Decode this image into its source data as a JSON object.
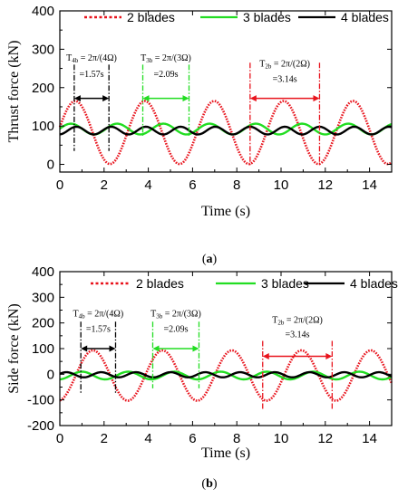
{
  "chart_data": [
    {
      "type": "line",
      "panel_label": "(a)",
      "xlabel": "Time (s)",
      "ylabel": "Thrust force (kN)",
      "xlim": [
        0,
        15
      ],
      "ylim": [
        -20,
        400
      ],
      "xticks": [
        0,
        2,
        4,
        6,
        8,
        10,
        12,
        14
      ],
      "yticks": [
        0,
        100,
        200,
        300,
        400
      ],
      "grid": false,
      "legend_position": "top",
      "series": [
        {
          "name": "2 blades",
          "color": "#e8141d",
          "style": "dotted",
          "mean": 83,
          "amplitude": 82,
          "period": 3.14,
          "phase_peak_time": 0.7
        },
        {
          "name": "3 blades",
          "color": "#22dd22",
          "style": "solid",
          "mean": 92,
          "amplitude": 14,
          "period": 2.09,
          "phase_peak_time": 0.5
        },
        {
          "name": "4 blades",
          "color": "#000000",
          "style": "solid",
          "mean": 88,
          "amplitude": 10,
          "period": 1.57,
          "phase_peak_time": 0.75
        }
      ],
      "annotations": [
        {
          "text_main": "T",
          "text_sub": "4b",
          "text_rest": " = 2π/(4Ω)",
          "value": "=1.57s",
          "color": "#000000",
          "x_start": 0.65,
          "x_end": 2.22,
          "y_arrow": 172,
          "y_label": 270,
          "y_value": 228,
          "line_top": 260,
          "line_bottom": 35
        },
        {
          "text_main": "T",
          "text_sub": "3b",
          "text_rest": " = 2π/(3Ω)",
          "value": "=2.09s",
          "color": "#22dd22",
          "x_start": 3.75,
          "x_end": 5.84,
          "y_arrow": 172,
          "y_label": 270,
          "y_value": 228,
          "line_top": 260,
          "line_bottom": 70
        },
        {
          "text_main": "T",
          "text_sub": "2b",
          "text_rest": " = 2π/(2Ω)",
          "value": "=3.14s",
          "color": "#e8141d",
          "x_start": 8.6,
          "x_end": 11.74,
          "y_arrow": 172,
          "y_label": 255,
          "y_value": 215,
          "line_top": 265,
          "line_bottom": -5
        }
      ]
    },
    {
      "type": "line",
      "panel_label": "(b)",
      "xlabel": "Time (s)",
      "ylabel": "Side force (kN)",
      "xlim": [
        0,
        15
      ],
      "ylim": [
        -200,
        400
      ],
      "xticks": [
        0,
        2,
        4,
        6,
        8,
        10,
        12,
        14
      ],
      "yticks": [
        -200,
        -100,
        0,
        100,
        200,
        300,
        400
      ],
      "grid": false,
      "legend_position": "top",
      "series": [
        {
          "name": "2 blades",
          "color": "#e8141d",
          "style": "dotted",
          "mean": -5,
          "amplitude": 98,
          "period": 3.14,
          "phase_peak_time": 1.5
        },
        {
          "name": "3 blades",
          "color": "#22dd22",
          "style": "solid",
          "mean": -5,
          "amplitude": 15,
          "period": 2.09,
          "phase_peak_time": 1.0
        },
        {
          "name": "4 blades",
          "color": "#000000",
          "style": "solid",
          "mean": -2,
          "amplitude": 10,
          "period": 1.57,
          "phase_peak_time": 0.3
        }
      ],
      "annotations": [
        {
          "text_main": "T",
          "text_sub": "4b",
          "text_rest": " = 2π/(4Ω)",
          "value": "=1.57s",
          "color": "#000000",
          "x_start": 0.95,
          "x_end": 2.52,
          "y_arrow": 100,
          "y_label": 225,
          "y_value": 165,
          "line_top": 205,
          "line_bottom": -75
        },
        {
          "text_main": "T",
          "text_sub": "3b",
          "text_rest": " = 2π/(3Ω)",
          "value": "=2.09s",
          "color": "#22dd22",
          "x_start": 4.2,
          "x_end": 6.29,
          "y_arrow": 100,
          "y_label": 225,
          "y_value": 165,
          "line_top": 205,
          "line_bottom": -55
        },
        {
          "text_main": "T",
          "text_sub": "2b",
          "text_rest": " = 2π/(2Ω)",
          "value": "=3.14s",
          "color": "#e8141d",
          "x_start": 9.17,
          "x_end": 12.31,
          "y_arrow": 70,
          "y_label": 200,
          "y_value": 145,
          "line_top": 130,
          "line_bottom": -140
        }
      ]
    }
  ]
}
